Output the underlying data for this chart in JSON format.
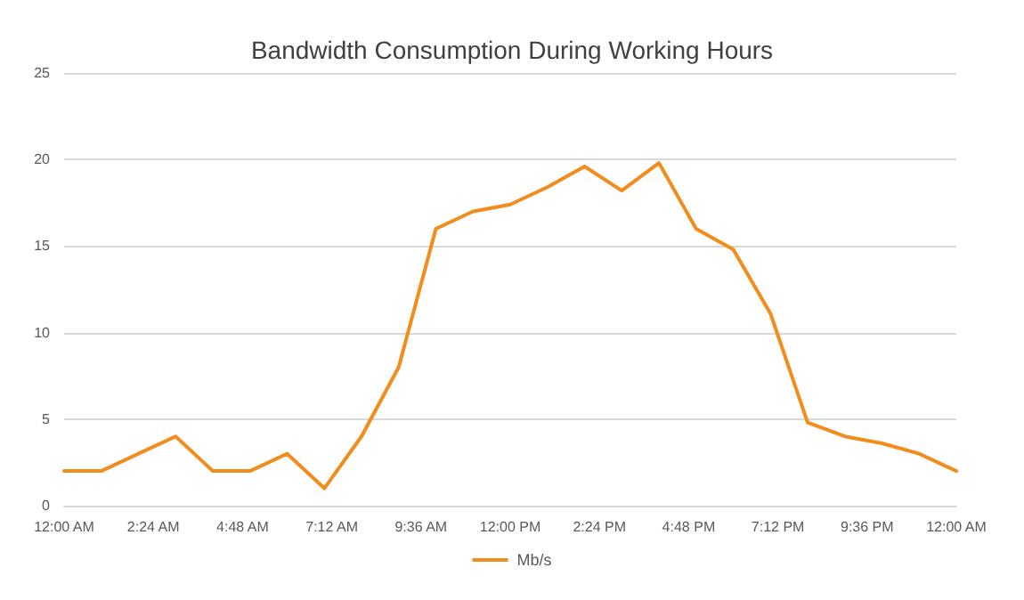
{
  "chart_data": {
    "type": "line",
    "title": "Bandwidth Consumption During Working Hours",
    "x": [
      0,
      1,
      2,
      3,
      4,
      5,
      6,
      7,
      8,
      9,
      10,
      11,
      12,
      13,
      14,
      15,
      16,
      17,
      18,
      19,
      20,
      21,
      22,
      23,
      24
    ],
    "series": [
      {
        "name": "Mb/s",
        "color": "#f28c1c",
        "values": [
          2,
          2,
          3,
          4,
          2,
          2,
          3,
          1,
          4,
          8,
          16,
          17,
          17.4,
          18.4,
          19.6,
          18.2,
          19.8,
          16,
          14.8,
          11.1,
          4.8,
          4,
          3.6,
          3,
          2
        ]
      }
    ],
    "xlim": [
      0,
      24
    ],
    "xticks": [
      {
        "value": 0,
        "label": "12:00 AM"
      },
      {
        "value": 2.4,
        "label": "2:24 AM"
      },
      {
        "value": 4.8,
        "label": "4:48 AM"
      },
      {
        "value": 7.2,
        "label": "7:12 AM"
      },
      {
        "value": 9.6,
        "label": "9:36 AM"
      },
      {
        "value": 12,
        "label": "12:00 PM"
      },
      {
        "value": 14.4,
        "label": "2:24 PM"
      },
      {
        "value": 16.8,
        "label": "4:48 PM"
      },
      {
        "value": 19.2,
        "label": "7:12 PM"
      },
      {
        "value": 21.6,
        "label": "9:36 PM"
      },
      {
        "value": 24,
        "label": "12:00 AM"
      }
    ],
    "ylim": [
      0,
      25
    ],
    "yticks": [
      0,
      5,
      10,
      15,
      20,
      25
    ],
    "grid": "y",
    "legend": "bottom",
    "marker": "none",
    "line_style": "solid"
  }
}
